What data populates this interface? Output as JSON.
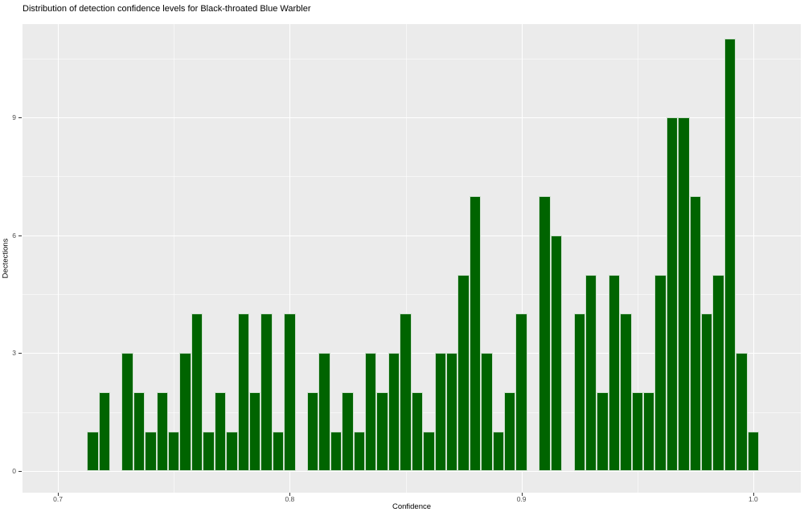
{
  "figure": {
    "title": "Distribution of detection confidence levels for Black-throated Blue Warbler"
  },
  "chart_data": {
    "type": "bar",
    "subtype": "histogram",
    "title": "Distribution of detection confidence levels for Black-throated Blue Warbler",
    "xlabel": "Confidence",
    "ylabel": "Dectections",
    "legend": "none",
    "grid": "on",
    "panel_bg": "#ebebeb",
    "grid_color": "#ffffff",
    "bar_color": "#006400",
    "bar_border": "#cde0cd",
    "tick_label_color": "#4d4d4d",
    "text_color": "#000000",
    "bin_width": 0.005,
    "bin_centers": [
      0.715,
      0.72,
      0.725,
      0.73,
      0.735,
      0.74,
      0.745,
      0.75,
      0.755,
      0.76,
      0.765,
      0.77,
      0.775,
      0.78,
      0.785,
      0.79,
      0.795,
      0.8,
      0.805,
      0.81,
      0.815,
      0.82,
      0.825,
      0.83,
      0.835,
      0.84,
      0.845,
      0.85,
      0.855,
      0.86,
      0.865,
      0.87,
      0.875,
      0.88,
      0.885,
      0.89,
      0.895,
      0.9,
      0.905,
      0.91,
      0.915,
      0.92,
      0.925,
      0.93,
      0.935,
      0.94,
      0.945,
      0.95,
      0.955,
      0.96,
      0.965,
      0.97,
      0.975,
      0.98,
      0.985,
      0.99,
      0.995,
      1.0
    ],
    "counts": [
      1,
      2,
      0,
      3,
      2,
      1,
      2,
      1,
      3,
      4,
      1,
      2,
      1,
      4,
      2,
      4,
      1,
      4,
      0,
      2,
      3,
      1,
      2,
      1,
      3,
      2,
      3,
      4,
      2,
      1,
      3,
      3,
      5,
      7,
      3,
      1,
      2,
      4,
      0,
      7,
      6,
      0,
      4,
      5,
      2,
      5,
      4,
      2,
      2,
      5,
      9,
      9,
      7,
      4,
      5,
      11,
      3,
      1
    ],
    "x_tick_labels": [
      "0.7",
      "0.8",
      "0.9",
      "1.0"
    ],
    "x_tick_values": [
      0.7,
      0.8,
      0.9,
      1.0
    ],
    "y_tick_labels": [
      "0",
      "3",
      "6",
      "9"
    ],
    "y_tick_values": [
      0,
      3,
      6,
      9
    ],
    "x_minor_ticks": [
      0.75,
      0.85,
      0.95
    ],
    "y_minor_ticks": [
      1.5,
      4.5,
      7.5,
      10.5
    ],
    "xlim": [
      0.6847,
      1.0205
    ],
    "ylim": [
      -0.552,
      11.373
    ]
  }
}
